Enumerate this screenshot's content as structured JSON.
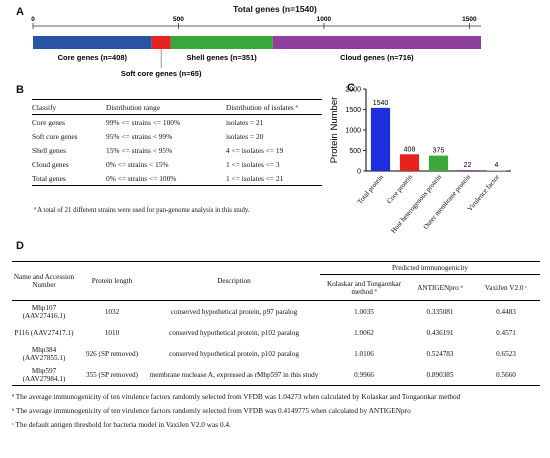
{
  "panelA": {
    "letter": "A",
    "title": "Total genes (n=1540)",
    "ticks": [
      "0",
      "500",
      "1000",
      "1500"
    ],
    "segments": [
      {
        "name": "core",
        "label": "Core genes (n=408)",
        "start": 0,
        "end": 408,
        "color": "#2a53a6"
      },
      {
        "name": "softcore",
        "label": "Soft core genes (n=65)",
        "start": 408,
        "end": 473,
        "color": "#e8231f"
      },
      {
        "name": "shell",
        "label": "Shell genes (n=351)",
        "start": 473,
        "end": 824,
        "color": "#3aa83a"
      },
      {
        "name": "cloud",
        "label": "Cloud genes (n=716)",
        "start": 824,
        "end": 1540,
        "color": "#8e3f9b"
      }
    ]
  },
  "panelB": {
    "letter": "B",
    "headers": [
      "Classify",
      "Distribution range",
      "Distribution of isolates ª"
    ],
    "rows": [
      [
        "Core genes",
        "99% <= strains <= 100%",
        "isolates = 21"
      ],
      [
        "Soft core genes",
        "95% <= strains < 99%",
        "isolates = 20"
      ],
      [
        "Shell genes",
        "15% <= strains < 95%",
        "4 <= isolates <= 19"
      ],
      [
        "Cloud genes",
        "0% <= strains < 15%",
        "1 <= isolates <= 3"
      ],
      [
        "Total genes",
        "0% <= strains <= 100%",
        "1 <= isolates <= 21"
      ]
    ],
    "footnote": "ª A total of 21 different strains were used for pan-genome analysis in this study."
  },
  "panelC": {
    "letter": "C",
    "chart_data": {
      "type": "bar",
      "categories": [
        "Total protein",
        "Core protein",
        "Host heterogenous protein",
        "Outer membrane protein",
        "Virulence factor"
      ],
      "values": [
        1540,
        408,
        375,
        22,
        4
      ],
      "colors": [
        "#1f2fe0",
        "#e8231f",
        "#3aa83a",
        "#8e3f9b",
        "#e8a5a5"
      ],
      "ylabel": "Protein Number",
      "ylim": [
        0,
        2000
      ],
      "yticks": [
        "0",
        "500",
        "1000",
        "1500",
        "2000"
      ],
      "data_labels": [
        "1540",
        "408",
        "375",
        "22",
        "4"
      ]
    }
  },
  "panelD": {
    "letter": "D",
    "headers": {
      "name": "Name and Accession Number",
      "length": "Protein length",
      "desc": "Description",
      "group": "Predicted immunogenicity",
      "m1": "Kolaskar and Tongaonkar method ª",
      "m2": "ANTIGENpro ᵇ",
      "m3": "VaxiJen V2.0 ᶜ"
    },
    "rows": [
      {
        "name": "Mhp107 (AAV27416.1)",
        "length": "1032",
        "desc": "conserved hypothetical protein, p97 paralog",
        "kt": "1.0035",
        "ap": "0.335081",
        "vj": "0.4483"
      },
      {
        "name": "P116 (AAV27417.1)",
        "length": "1010",
        "desc": "conserved hypothetical protein, p102 paralog",
        "kt": "1.0062",
        "ap": "0.436191",
        "vj": "0.4571"
      },
      {
        "name": "Mhp384 (AAV27855.1)",
        "length": "926 (SP removed)",
        "desc": "conserved hypothetical protein, p102 paralog",
        "kt": "1.0106",
        "ap": "0.524783",
        "vj": "0.6523"
      },
      {
        "name": "Mhp597 (AAV27984.1)",
        "length": "355 (SP removed)",
        "desc": "membrane nuclease A, expressed as rMhp597 in this study",
        "kt": "0.9966",
        "ap": "0.890385",
        "vj": "0.5660"
      }
    ],
    "footnotes": [
      "ª The average immunogenicity of ten virulence factors randomly selected from VFDB was 1.04273 when calculated by Kolaskar and Tongaonkar method",
      "ᵇ The average immunogenicity of ten virulence factors randomly selected from VFDB was 0.4149775 when calculated by ANTIGENpro",
      "ᶜ The default antigen threshold for bacteria model in VaxiJen V2.0 was 0.4."
    ]
  }
}
